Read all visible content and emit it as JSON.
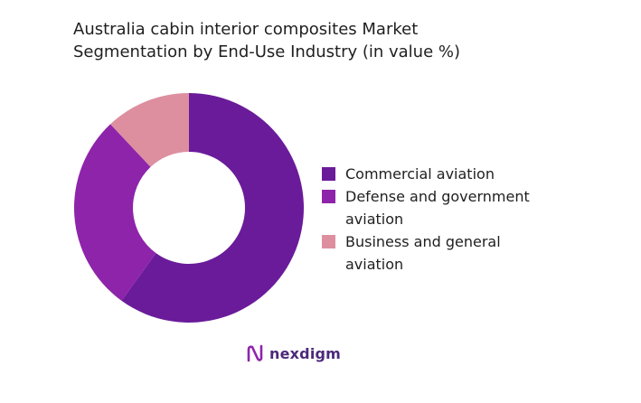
{
  "title": {
    "line1": "Australia cabin interior composites Market",
    "line2": "Segmentation by End-Use Industry (in value %)"
  },
  "chart_data": {
    "type": "pie",
    "title": "Australia cabin interior composites Market Segmentation by End-Use Industry (in value %)",
    "categories": [
      "Commercial aviation",
      "Defense and government aviation",
      "Business and general aviation"
    ],
    "values": [
      60,
      28,
      12
    ],
    "colors": [
      "#6a1b9a",
      "#8e24aa",
      "#dd8fa0"
    ],
    "donut": true,
    "legend_position": "right"
  },
  "legend": [
    {
      "label": "Commercial aviation",
      "color": "#6a1b9a"
    },
    {
      "label": "Defense and government aviation",
      "color": "#8e24aa"
    },
    {
      "label": "Business and general aviation",
      "color": "#dd8fa0"
    }
  ],
  "logo": {
    "text": "nexdigm",
    "icon": "nexdigm-logo-icon",
    "color": "#4b2a7a"
  }
}
